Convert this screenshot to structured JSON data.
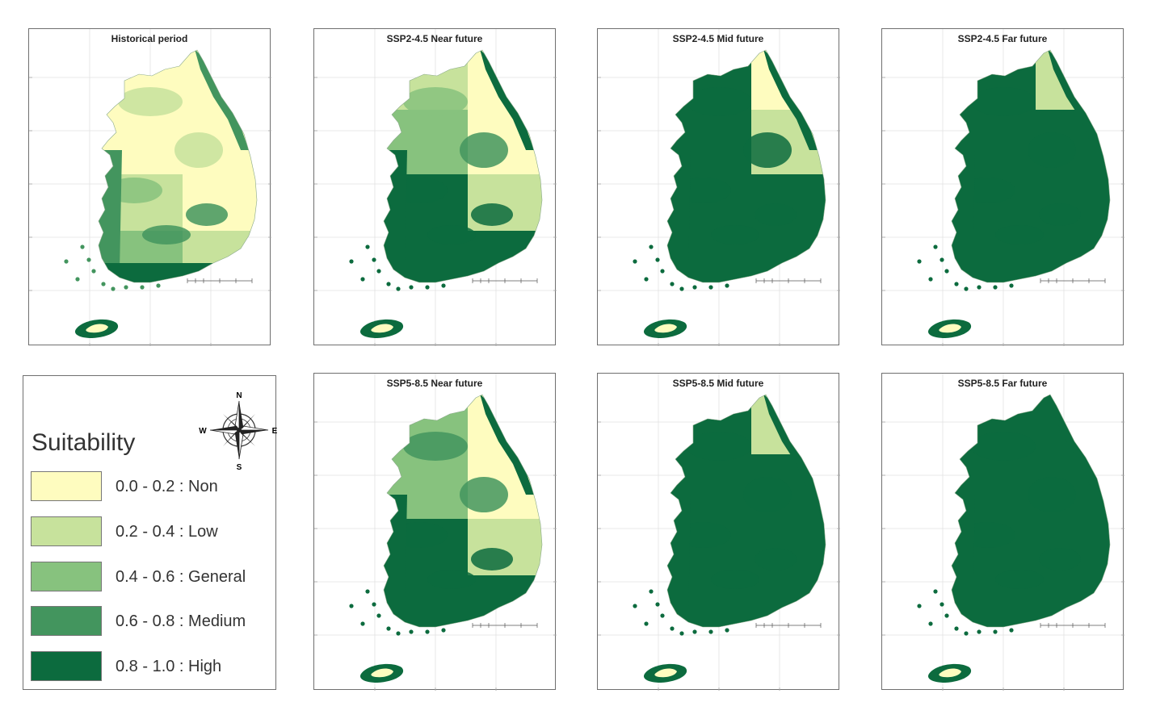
{
  "panels": [
    {
      "title": "Historical period"
    },
    {
      "title": "SSP2-4.5 Near future"
    },
    {
      "title": "SSP2-4.5 Mid future"
    },
    {
      "title": "SSP2-4.5 Far future"
    },
    {
      "title": "SSP5-8.5 Near future"
    },
    {
      "title": "SSP5-8.5 Mid future"
    },
    {
      "title": "SSP5-8.5 Far future"
    }
  ],
  "legend": {
    "title": "Suitability",
    "items": [
      {
        "label": "0.0 - 0.2 : Non",
        "color": "#fefcbf"
      },
      {
        "label": "0.2 - 0.4 : Low",
        "color": "#c7e29c"
      },
      {
        "label": "0.4 - 0.6 : General",
        "color": "#87c27e"
      },
      {
        "label": "0.6 - 0.8 : Medium",
        "color": "#43955e"
      },
      {
        "label": "0.8 - 1.0 : High",
        "color": "#0c6b3e"
      }
    ],
    "compass": {
      "n": "N",
      "s": "S",
      "e": "E",
      "w": "W"
    }
  }
}
